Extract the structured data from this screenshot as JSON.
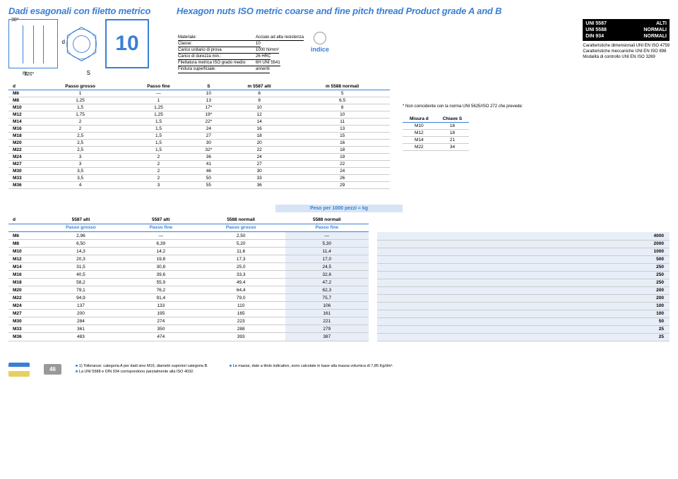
{
  "titles": {
    "left": "Dadi esagonali con filetto metrico",
    "right": "Hexagon nuts ISO metric coarse and fine pitch thread Product grade A and B"
  },
  "diagram": {
    "angle_top": "30°",
    "angle_bottom": "120°",
    "label_d": "d",
    "label_m": "m",
    "label_s": "S",
    "ten": "10"
  },
  "material": {
    "rows": [
      {
        "lab": "Materiale:",
        "val": "Acciaio ad alta resistenza"
      },
      {
        "lab": "Classe:",
        "val": "10"
      },
      {
        "lab": "Carico unitario di prova",
        "val": "1000 N/mm²"
      },
      {
        "lab": "Carico di durezza min.:",
        "val": "26 HRC"
      },
      {
        "lab": "Filettatura metrica ISO grado medio:",
        "val": "6H UNI 5541"
      },
      {
        "lab": "Finitura superficiale:",
        "val": "anneriti"
      }
    ]
  },
  "indice": "indice",
  "standards": {
    "bars": [
      {
        "l": "UNI 5587",
        "r": "ALTI"
      },
      {
        "l": "UNI 5588",
        "r": "NORMALI"
      },
      {
        "l": "DIN 934",
        "r": "NORMALI"
      }
    ],
    "notes": [
      "Caratteristiche dimensionali UNI EN ISO 4759",
      "Caratteristiche meccaniche UNI EN ISO 898",
      "Modalità di controllo UNI EN ISO 3269"
    ]
  },
  "main_table": {
    "headers": [
      "d",
      "Passo grosso",
      "Passo fine",
      "S",
      "m 5587 alti",
      "m 5588 normali"
    ],
    "rows": [
      [
        "M6",
        "1",
        "—",
        "10",
        "6",
        "5"
      ],
      [
        "M8",
        "1,25",
        "1",
        "13",
        "8",
        "6,5"
      ],
      [
        "M10",
        "1,5",
        "1,25",
        "17*",
        "10",
        "8"
      ],
      [
        "M12",
        "1,75",
        "1,25",
        "19*",
        "12",
        "10"
      ],
      [
        "M14",
        "2",
        "1,5",
        "22*",
        "14",
        "11"
      ],
      [
        "M16",
        "2",
        "1,5",
        "24",
        "16",
        "13"
      ],
      [
        "M18",
        "2,5",
        "1,5",
        "27",
        "18",
        "15"
      ],
      [
        "M20",
        "2,5",
        "1,5",
        "30",
        "20",
        "16"
      ],
      [
        "M22",
        "2,5",
        "1,5",
        "32*",
        "22",
        "18"
      ],
      [
        "M24",
        "3",
        "2",
        "36",
        "24",
        "19"
      ],
      [
        "M27",
        "3",
        "2",
        "41",
        "27",
        "22"
      ],
      [
        "M30",
        "3,5",
        "2",
        "46",
        "30",
        "24"
      ],
      [
        "M33",
        "3,5",
        "2",
        "50",
        "33",
        "26"
      ],
      [
        "M36",
        "4",
        "3",
        "55",
        "36",
        "29"
      ]
    ]
  },
  "side_note": "* Non coincidente con la norma UNI 5625/ISO 272 che prevede:",
  "side_table": {
    "headers": [
      "Misura d",
      "Chiave S"
    ],
    "rows": [
      [
        "M10",
        "16"
      ],
      [
        "M12",
        "18"
      ],
      [
        "M14",
        "21"
      ],
      [
        "M22",
        "34"
      ]
    ]
  },
  "peso_header": "Peso per 1000 pezzi ≈ kg",
  "weight_table": {
    "headers_top": [
      "d",
      "5587 alti",
      "5587 alti",
      "5588 normali",
      "5588 normali"
    ],
    "headers_sub": [
      "",
      "Passo grosso",
      "Passo fine",
      "Passo grosso",
      "Passo fine"
    ],
    "rows": [
      [
        "M6",
        "2,96",
        "—",
        "2,50",
        "—"
      ],
      [
        "M8",
        "6,50",
        "6,39",
        "5,20",
        "5,30"
      ],
      [
        "M10",
        "14,3",
        "14,2",
        "11,6",
        "11,4"
      ],
      [
        "M12",
        "20,3",
        "19,8",
        "17,3",
        "17,0"
      ],
      [
        "M14",
        "31,5",
        "30,8",
        "25,0",
        "24,5"
      ],
      [
        "M16",
        "40,5",
        "39,6",
        "33,3",
        "32,6"
      ],
      [
        "M18",
        "58,2",
        "55,9",
        "49,4",
        "47,2"
      ],
      [
        "M20",
        "79,1",
        "76,2",
        "64,4",
        "62,3"
      ],
      [
        "M22",
        "94,9",
        "91,4",
        "79,0",
        "75,7"
      ],
      [
        "M24",
        "137",
        "133",
        "110",
        "106"
      ],
      [
        "M27",
        "200",
        "195",
        "165",
        "161"
      ],
      [
        "M30",
        "284",
        "274",
        "223",
        "221"
      ],
      [
        "M33",
        "361",
        "350",
        "288",
        "279"
      ],
      [
        "M36",
        "483",
        "474",
        "393",
        "387"
      ]
    ]
  },
  "conf_values": [
    "4000",
    "2000",
    "1000",
    "500",
    "250",
    "250",
    "250",
    "200",
    "200",
    "100",
    "100",
    "50",
    "25",
    "25"
  ],
  "footer": {
    "page": "46",
    "note1a": "1) Tolleranze: categoria A per dadi sino M16, diametri superiori categoria B.",
    "note1b": "La UNI 5588 e DIN 934 corrispondono parzialmente alla ISO 4032.",
    "note2": "Le masse, date a titolo indicativo, sono calcolate in base alla massa volumica di 7,85 Kg/dm³."
  },
  "colors": {
    "accent": "#3a7fd4",
    "shade": "#e8eef7",
    "header_shade": "#d6e4f5"
  }
}
